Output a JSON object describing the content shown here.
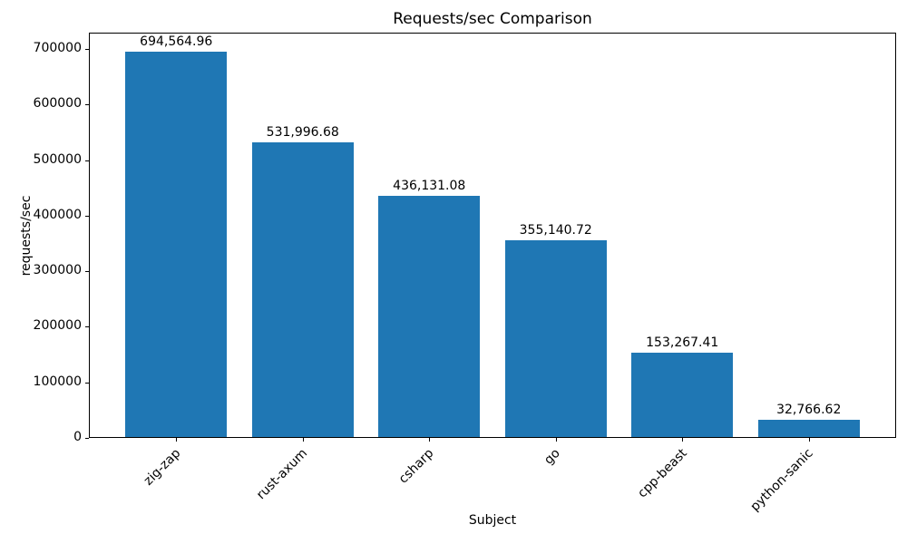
{
  "chart_data": {
    "type": "bar",
    "title": "Requests/sec Comparison",
    "xlabel": "Subject",
    "ylabel": "requests/sec",
    "categories": [
      "zig-zap",
      "rust-axum",
      "csharp",
      "go",
      "cpp-beast",
      "python-sanic"
    ],
    "values": [
      694564.96,
      531996.68,
      436131.08,
      355140.72,
      153267.41,
      32766.62
    ],
    "value_labels": [
      "694,564.96",
      "531,996.68",
      "436,131.08",
      "355,140.72",
      "153,267.41",
      "32,766.62"
    ],
    "yticks": [
      0,
      100000,
      200000,
      300000,
      400000,
      500000,
      600000,
      700000
    ],
    "ylim": [
      0,
      729293
    ],
    "bar_color": "#1f77b4",
    "grid": false,
    "legend": null,
    "x_tick_rotation_deg": 45
  }
}
